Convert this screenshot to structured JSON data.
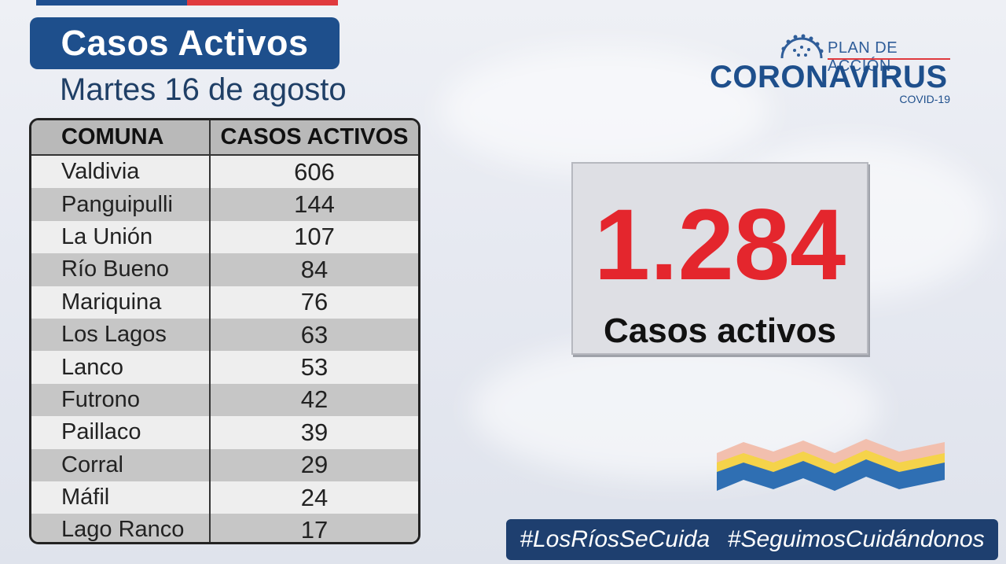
{
  "header": {
    "title": "Casos Activos",
    "subtitle": "Martes 16 de agosto"
  },
  "logo": {
    "plan": "PLAN DE ACCIÓN",
    "main": "CORONAVIRUS",
    "sub": "COVID-19"
  },
  "table": {
    "headers": [
      "COMUNA",
      "CASOS ACTIVOS"
    ],
    "rows": [
      {
        "comuna": "Valdivia",
        "casos": "606"
      },
      {
        "comuna": "Panguipulli",
        "casos": "144"
      },
      {
        "comuna": "La Unión",
        "casos": "107"
      },
      {
        "comuna": "Río Bueno",
        "casos": "84"
      },
      {
        "comuna": "Mariquina",
        "casos": "76"
      },
      {
        "comuna": "Los Lagos",
        "casos": "63"
      },
      {
        "comuna": "Lanco",
        "casos": "53"
      },
      {
        "comuna": "Futrono",
        "casos": "42"
      },
      {
        "comuna": "Paillaco",
        "casos": "39"
      },
      {
        "comuna": "Corral",
        "casos": "29"
      },
      {
        "comuna": "Máfil",
        "casos": "24"
      },
      {
        "comuna": "Lago Ranco",
        "casos": "17"
      }
    ]
  },
  "total": {
    "value": "1.284",
    "label": "Casos activos"
  },
  "hashtags": [
    "#LosRíosSeCuida",
    "#SeguimosCuidándonos"
  ],
  "colors": {
    "brand_blue": "#1e4f8c",
    "accent_red": "#e4262d",
    "footer_blue": "#1e3f6f"
  }
}
